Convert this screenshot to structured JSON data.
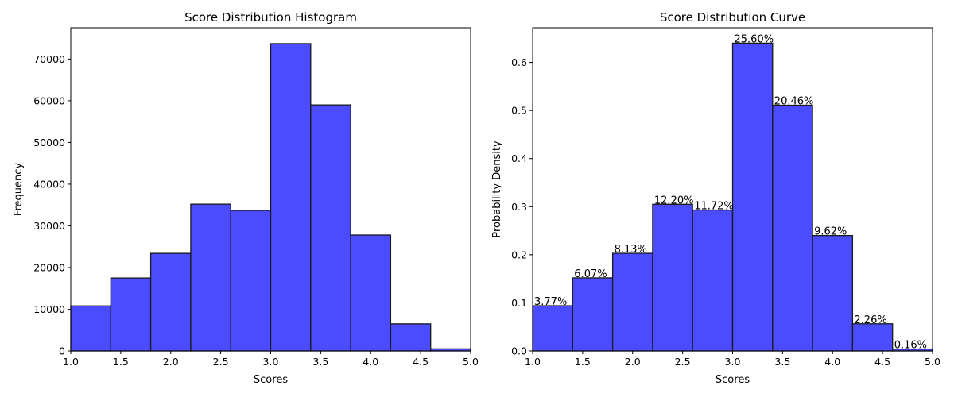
{
  "chart_data": [
    {
      "type": "bar",
      "title": "Score Distribution Histogram",
      "xlabel": "Scores",
      "ylabel": "Frequency",
      "bin_edges": [
        1.0,
        1.4,
        1.8,
        2.2,
        2.6,
        3.0,
        3.4,
        3.8,
        4.2,
        4.6,
        5.0
      ],
      "values": [
        10800,
        17500,
        23400,
        35200,
        33700,
        73700,
        59000,
        27800,
        6500,
        500
      ],
      "xlim": [
        1.0,
        5.0
      ],
      "ylim": [
        0,
        77500
      ],
      "x_ticks": [
        "1.0",
        "1.5",
        "2.0",
        "2.5",
        "3.0",
        "3.5",
        "4.0",
        "4.5",
        "5.0"
      ],
      "y_ticks": [
        "0",
        "10000",
        "20000",
        "30000",
        "40000",
        "50000",
        "60000",
        "70000"
      ],
      "bar_color": "#4b4bff",
      "edge_color": "#1a1a1a",
      "grid": false
    },
    {
      "type": "bar",
      "title": "Score Distribution Curve",
      "xlabel": "Scores",
      "ylabel": "Probability Density",
      "bin_edges": [
        1.0,
        1.4,
        1.8,
        2.2,
        2.6,
        3.0,
        3.4,
        3.8,
        4.2,
        4.6,
        5.0
      ],
      "values": [
        0.094,
        0.152,
        0.203,
        0.305,
        0.293,
        0.64,
        0.511,
        0.24,
        0.0565,
        0.004
      ],
      "data_labels": [
        "3.77%",
        "6.07%",
        "8.13%",
        "12.20%",
        "11.72%",
        "25.60%",
        "20.46%",
        "9.62%",
        "2.26%",
        "0.16%"
      ],
      "xlim": [
        1.0,
        5.0
      ],
      "ylim": [
        0,
        0.672
      ],
      "x_ticks": [
        "1.0",
        "1.5",
        "2.0",
        "2.5",
        "3.0",
        "3.5",
        "4.0",
        "4.5",
        "5.0"
      ],
      "y_ticks": [
        "0.0",
        "0.1",
        "0.2",
        "0.3",
        "0.4",
        "0.5",
        "0.6"
      ],
      "bar_color": "#4b4bff",
      "edge_color": "#1a1a1a",
      "grid": false
    }
  ]
}
